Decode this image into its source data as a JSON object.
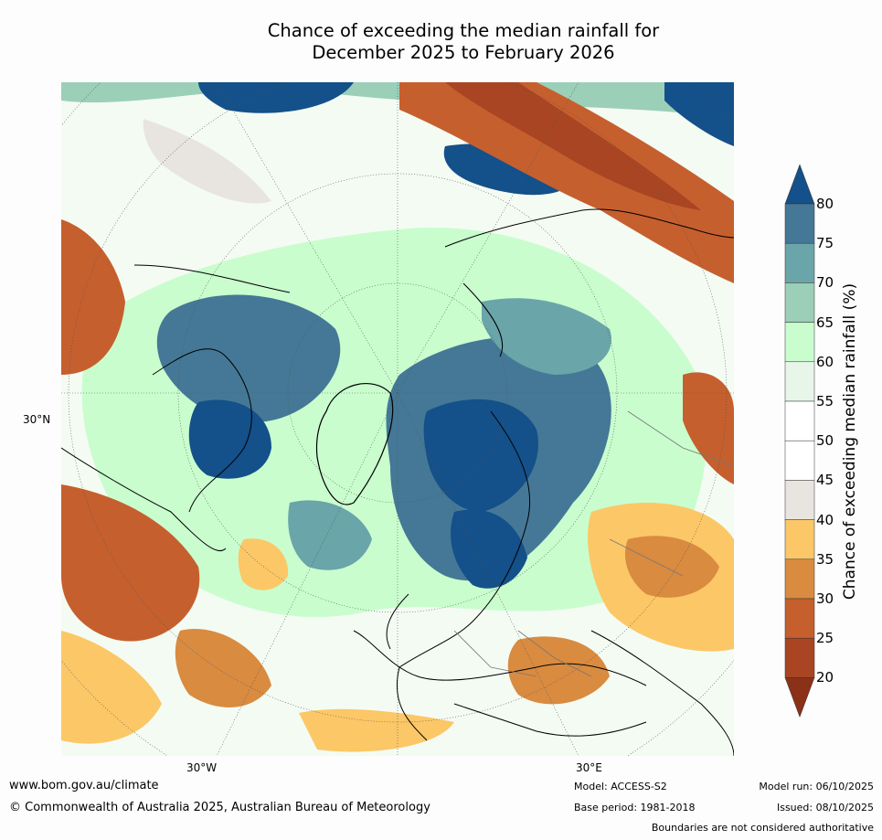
{
  "title_line1": "Chance of exceeding the median rainfall for",
  "title_line2": "December 2025 to February 2026",
  "map": {
    "lat_label": "30°N",
    "lon_label_west": "30°W",
    "lon_label_east": "30°E"
  },
  "colorbar": {
    "label": "Chance of exceeding median rainfall (%)",
    "ticks": [
      "80",
      "75",
      "70",
      "65",
      "60",
      "55",
      "50",
      "45",
      "40",
      "35",
      "30",
      "25",
      "20"
    ],
    "bins": [
      {
        "range": "<20",
        "color": "#8b3118"
      },
      {
        "range": "20-25",
        "color": "#a94522"
      },
      {
        "range": "25-30",
        "color": "#c65f2e"
      },
      {
        "range": "30-35",
        "color": "#d98b40"
      },
      {
        "range": "35-40",
        "color": "#fcc766"
      },
      {
        "range": "40-45",
        "color": "#e8e5e1"
      },
      {
        "range": "45-50",
        "color": "#ffffff"
      },
      {
        "range": "50-55",
        "color": "#ffffff"
      },
      {
        "range": "55-60",
        "color": "#e8f6e9"
      },
      {
        "range": "60-65",
        "color": "#c9fdce"
      },
      {
        "range": "65-70",
        "color": "#9bcfb8"
      },
      {
        "range": "70-75",
        "color": "#6aa5a9"
      },
      {
        "range": "75-80",
        "color": "#447896"
      },
      {
        "range": ">80",
        "color": "#145089"
      }
    ]
  },
  "footer": {
    "website": "www.bom.gov.au/climate",
    "copyright": "© Commonwealth of Australia 2025, Australian Bureau of Meteorology",
    "model": "Model: ACCESS-S2",
    "base_period": "Base period: 1981-2018",
    "model_run": "Model run: 06/10/2025",
    "issued": "Issued: 08/10/2025",
    "disclaimer": "Boundaries are not considered authoritative"
  }
}
